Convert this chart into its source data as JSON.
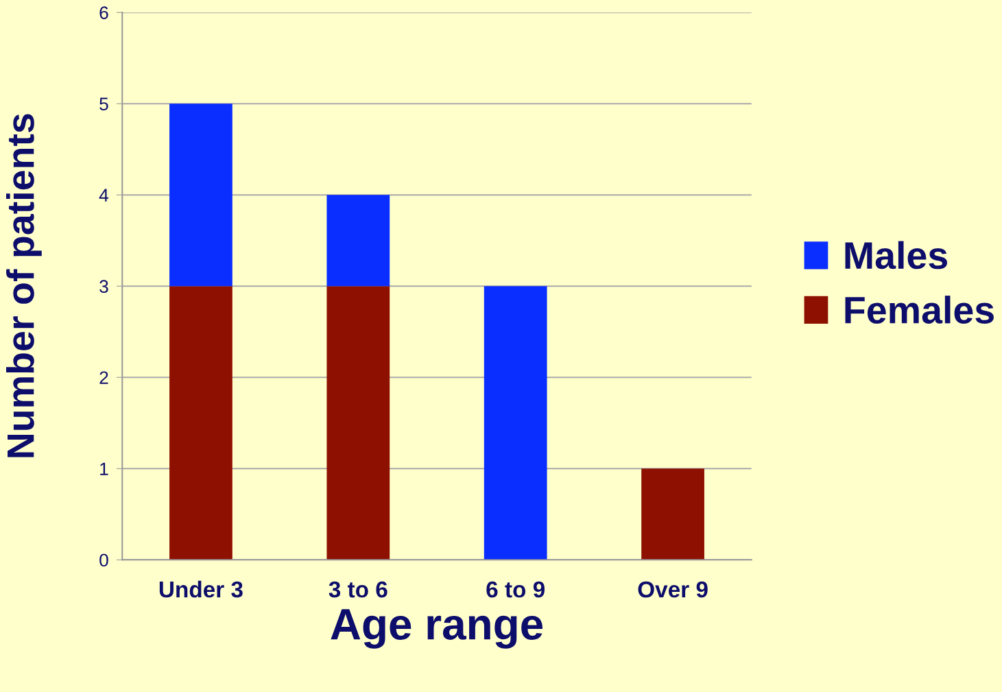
{
  "chart_data": {
    "type": "bar",
    "stacked": true,
    "xlabel": "Age range",
    "ylabel": "Number of patients",
    "categories": [
      "Under 3",
      "3 to 6",
      "6 to 9",
      "Over 9"
    ],
    "series": [
      {
        "name": "Females",
        "color": "#8e1000",
        "values": [
          3,
          3,
          0,
          1
        ]
      },
      {
        "name": "Males",
        "color": "#0a2eff",
        "values": [
          2,
          1,
          3,
          0
        ]
      }
    ],
    "ylim": [
      0,
      6
    ],
    "yticks": [
      0,
      1,
      2,
      3,
      4,
      5,
      6
    ],
    "grid": "y",
    "legend": "right"
  }
}
